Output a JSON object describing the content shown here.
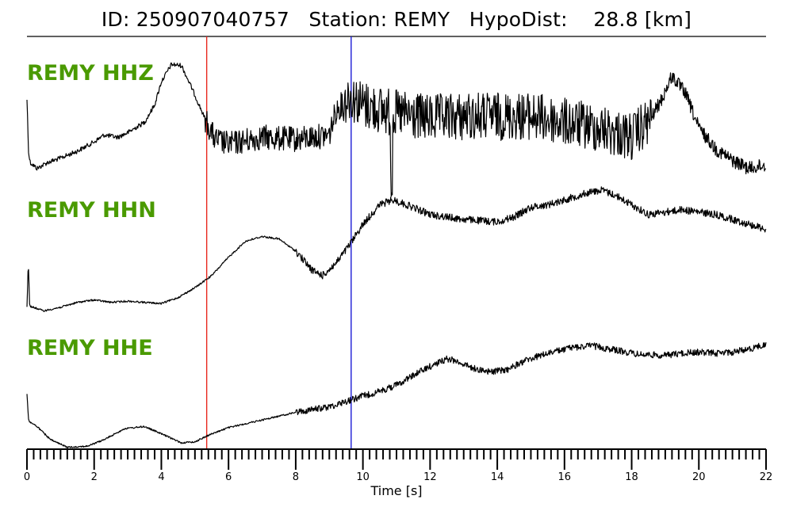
{
  "header": {
    "title": "ID: 250907040757   Station: REMY   HypoDist:    28.8 [km]"
  },
  "chart_data": {
    "type": "line",
    "title": "ID: 250907040757   Station: REMY   HypoDist:    28.8 [km]",
    "xlabel": "Time [s]",
    "ylabel": "",
    "xlim": [
      0,
      22
    ],
    "xticks": [
      "0",
      "2",
      "4",
      "6",
      "8",
      "10",
      "12",
      "14",
      "16",
      "18",
      "20",
      "22"
    ],
    "grid": false,
    "markers": [
      {
        "x": 5.35,
        "color": "#e8281e"
      },
      {
        "x": 9.65,
        "color": "#1c1cd6"
      }
    ],
    "series": [
      {
        "name": "REMY HHZ",
        "color": "#000000",
        "noise": 0.5,
        "points": [
          [
            0.0,
            0.35
          ],
          [
            0.05,
            0.82
          ],
          [
            0.1,
            0.9
          ],
          [
            0.3,
            0.95
          ],
          [
            0.6,
            0.9
          ],
          [
            1.0,
            0.86
          ],
          [
            1.5,
            0.8
          ],
          [
            2.0,
            0.72
          ],
          [
            2.3,
            0.66
          ],
          [
            2.7,
            0.68
          ],
          [
            3.0,
            0.64
          ],
          [
            3.5,
            0.55
          ],
          [
            3.8,
            0.4
          ],
          [
            4.0,
            0.2
          ],
          [
            4.3,
            0.05
          ],
          [
            4.6,
            0.06
          ],
          [
            4.9,
            0.25
          ],
          [
            5.3,
            0.52
          ],
          [
            5.6,
            0.7
          ],
          [
            6.0,
            0.74
          ],
          [
            7.0,
            0.68
          ],
          [
            8.0,
            0.7
          ],
          [
            9.0,
            0.66
          ],
          [
            9.2,
            0.45
          ],
          [
            9.6,
            0.32
          ],
          [
            10.0,
            0.4
          ],
          [
            11.0,
            0.48
          ],
          [
            12.0,
            0.52
          ],
          [
            13.0,
            0.5
          ],
          [
            14.0,
            0.5
          ],
          [
            15.0,
            0.5
          ],
          [
            16.0,
            0.55
          ],
          [
            17.0,
            0.6
          ],
          [
            18.0,
            0.68
          ],
          [
            18.5,
            0.55
          ],
          [
            18.9,
            0.35
          ],
          [
            19.2,
            0.15
          ],
          [
            19.6,
            0.3
          ],
          [
            20.0,
            0.6
          ],
          [
            20.5,
            0.78
          ],
          [
            21.0,
            0.88
          ],
          [
            21.5,
            0.95
          ],
          [
            22.0,
            0.92
          ]
        ]
      },
      {
        "name": "REMY HHN",
        "color": "#000000",
        "noise": 0.12,
        "points": [
          [
            0.0,
            0.96
          ],
          [
            0.04,
            0.58
          ],
          [
            0.08,
            0.95
          ],
          [
            0.5,
            0.99
          ],
          [
            1.0,
            0.96
          ],
          [
            1.5,
            0.92
          ],
          [
            2.0,
            0.9
          ],
          [
            2.5,
            0.92
          ],
          [
            3.0,
            0.91
          ],
          [
            3.5,
            0.92
          ],
          [
            4.0,
            0.93
          ],
          [
            4.5,
            0.88
          ],
          [
            5.0,
            0.8
          ],
          [
            5.5,
            0.7
          ],
          [
            6.0,
            0.55
          ],
          [
            6.5,
            0.42
          ],
          [
            7.0,
            0.38
          ],
          [
            7.5,
            0.4
          ],
          [
            8.0,
            0.5
          ],
          [
            8.5,
            0.66
          ],
          [
            8.8,
            0.7
          ],
          [
            9.2,
            0.6
          ],
          [
            9.6,
            0.45
          ],
          [
            10.0,
            0.28
          ],
          [
            10.5,
            0.12
          ],
          [
            10.9,
            0.08
          ],
          [
            11.3,
            0.12
          ],
          [
            12.0,
            0.2
          ],
          [
            13.0,
            0.24
          ],
          [
            14.0,
            0.26
          ],
          [
            14.5,
            0.22
          ],
          [
            15.0,
            0.14
          ],
          [
            15.5,
            0.12
          ],
          [
            16.0,
            0.08
          ],
          [
            16.7,
            0.02
          ],
          [
            17.1,
            0.0
          ],
          [
            17.5,
            0.04
          ],
          [
            18.0,
            0.12
          ],
          [
            18.5,
            0.2
          ],
          [
            19.0,
            0.18
          ],
          [
            19.5,
            0.16
          ],
          [
            20.0,
            0.18
          ],
          [
            20.5,
            0.2
          ],
          [
            21.0,
            0.24
          ],
          [
            21.5,
            0.28
          ],
          [
            22.0,
            0.32
          ]
        ]
      },
      {
        "name": "REMY HHE",
        "color": "#000000",
        "noise": 0.12,
        "points": [
          [
            0.0,
            0.5
          ],
          [
            0.05,
            0.75
          ],
          [
            0.3,
            0.8
          ],
          [
            0.7,
            0.92
          ],
          [
            1.2,
            0.99
          ],
          [
            1.8,
            0.98
          ],
          [
            2.3,
            0.92
          ],
          [
            2.9,
            0.82
          ],
          [
            3.5,
            0.8
          ],
          [
            4.1,
            0.88
          ],
          [
            4.6,
            0.95
          ],
          [
            5.0,
            0.94
          ],
          [
            5.4,
            0.88
          ],
          [
            6.0,
            0.81
          ],
          [
            7.0,
            0.74
          ],
          [
            8.0,
            0.67
          ],
          [
            9.0,
            0.62
          ],
          [
            9.5,
            0.57
          ],
          [
            10.0,
            0.52
          ],
          [
            10.5,
            0.48
          ],
          [
            11.0,
            0.42
          ],
          [
            11.5,
            0.33
          ],
          [
            12.0,
            0.25
          ],
          [
            12.5,
            0.18
          ],
          [
            12.8,
            0.2
          ],
          [
            13.2,
            0.26
          ],
          [
            13.8,
            0.3
          ],
          [
            14.3,
            0.28
          ],
          [
            14.8,
            0.2
          ],
          [
            15.5,
            0.13
          ],
          [
            16.2,
            0.08
          ],
          [
            16.8,
            0.06
          ],
          [
            17.5,
            0.1
          ],
          [
            18.2,
            0.14
          ],
          [
            19.0,
            0.15
          ],
          [
            19.5,
            0.13
          ],
          [
            20.0,
            0.12
          ],
          [
            20.5,
            0.13
          ],
          [
            21.0,
            0.12
          ],
          [
            21.5,
            0.09
          ],
          [
            22.0,
            0.05
          ]
        ]
      }
    ]
  }
}
